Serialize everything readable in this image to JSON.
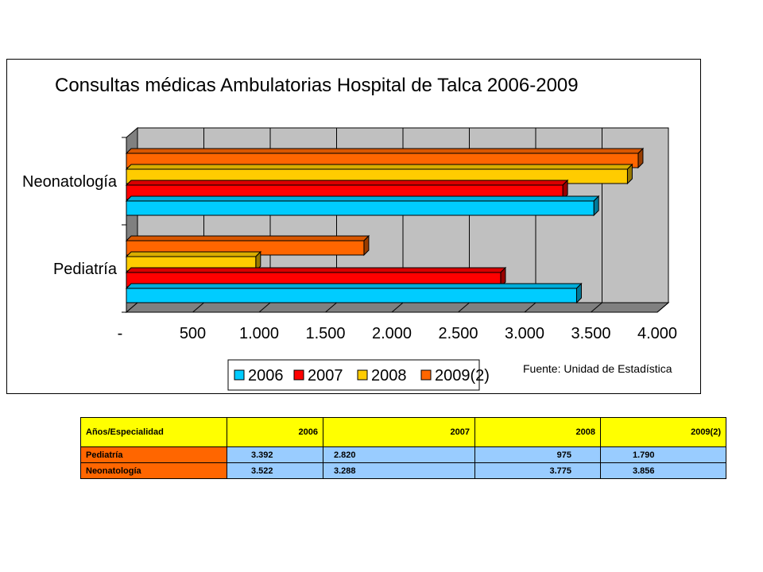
{
  "chart_data": {
    "type": "bar",
    "orientation": "horizontal",
    "title": "Consultas médicas Ambulatorias Hospital de Talca 2006-2009",
    "categories": [
      "Neonatología",
      "Pediatría"
    ],
    "series": [
      {
        "name": "2006",
        "color": "#00ccff",
        "values": [
          3522,
          3392
        ]
      },
      {
        "name": "2007",
        "color": "#ff0000",
        "values": [
          3288,
          2820
        ]
      },
      {
        "name": "2008",
        "color": "#ffcc00",
        "values": [
          3775,
          975
        ]
      },
      {
        "name": "2009(2)",
        "color": "#ff6600",
        "values": [
          3856,
          1790
        ]
      }
    ],
    "xlim": [
      0,
      4000
    ],
    "xticks": [
      0,
      500,
      1000,
      1500,
      2000,
      2500,
      3000,
      3500,
      4000
    ],
    "xtick_labels": [
      "-",
      "500",
      "1.000",
      "1.500",
      "2.000",
      "2.500",
      "3.000",
      "3.500",
      "4.000"
    ],
    "grid": true,
    "legend_position": "bottom"
  },
  "source_note": "Fuente: Unidad de Estadística",
  "table": {
    "header": [
      "Años/Especialidad",
      "2006",
      "2007",
      "2008",
      "2009(2)"
    ],
    "rows": [
      {
        "label": "Pediatría",
        "values": [
          "3.392",
          "2.820",
          "975",
          "1.790"
        ]
      },
      {
        "label": "Neonatología",
        "values": [
          "3.522",
          "3.288",
          "3.775",
          "3.856"
        ]
      }
    ]
  }
}
